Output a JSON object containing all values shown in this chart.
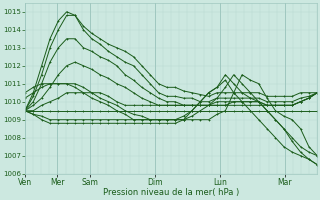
{
  "bg_color": "#cce8e0",
  "plot_bg_color": "#cce8e0",
  "grid_minor_color": "#b8d8d0",
  "grid_major_color": "#a0c8c0",
  "line_color": "#1a5c1a",
  "xlabel": "Pression niveau de la mer( hPa )",
  "ylim": [
    1006,
    1015.5
  ],
  "yticks": [
    1006,
    1007,
    1008,
    1009,
    1010,
    1011,
    1012,
    1013,
    1014,
    1015
  ],
  "day_labels": [
    "Ven",
    "Mer",
    "Sam",
    "Dim",
    "Lun",
    "Mar"
  ],
  "day_positions": [
    0,
    24,
    48,
    96,
    144,
    192
  ],
  "total_hours": 216,
  "series": [
    [
      1009.5,
      1010.5,
      1012.0,
      1013.5,
      1014.5,
      1015.0,
      1014.8,
      1014.2,
      1013.8,
      1013.5,
      1013.2,
      1013.0,
      1012.8,
      1012.5,
      1012.0,
      1011.5,
      1011.0,
      1010.8,
      1010.8,
      1010.6,
      1010.5,
      1010.4,
      1010.3,
      1010.5,
      1010.5,
      1010.5,
      1010.5,
      1010.5,
      1010.5,
      1010.3,
      1010.3,
      1010.3,
      1010.3,
      1010.5,
      1010.5,
      1010.5
    ],
    [
      1009.5,
      1010.3,
      1011.5,
      1013.0,
      1014.0,
      1014.8,
      1014.8,
      1014.0,
      1013.5,
      1013.2,
      1012.8,
      1012.5,
      1012.2,
      1012.0,
      1011.5,
      1011.0,
      1010.5,
      1010.3,
      1010.3,
      1010.2,
      1010.2,
      1010.0,
      1010.0,
      1010.2,
      1010.2,
      1010.2,
      1010.2,
      1010.2,
      1010.2,
      1010.0,
      1010.0,
      1010.0,
      1010.0,
      1010.2,
      1010.3,
      1010.5
    ],
    [
      1009.5,
      1010.0,
      1011.0,
      1012.2,
      1013.0,
      1013.5,
      1013.5,
      1013.0,
      1012.8,
      1012.5,
      1012.3,
      1012.0,
      1011.5,
      1011.2,
      1010.8,
      1010.5,
      1010.2,
      1010.0,
      1010.0,
      1009.8,
      1009.8,
      1009.8,
      1009.8,
      1010.0,
      1010.0,
      1010.0,
      1010.0,
      1010.0,
      1010.0,
      1009.8,
      1009.8,
      1009.8,
      1009.8,
      1010.0,
      1010.2,
      1010.5
    ],
    [
      1009.5,
      1009.8,
      1010.2,
      1010.8,
      1011.5,
      1012.0,
      1012.2,
      1012.0,
      1011.8,
      1011.5,
      1011.3,
      1011.0,
      1010.8,
      1010.5,
      1010.2,
      1010.0,
      1009.8,
      1009.8,
      1009.8,
      1009.8,
      1009.8,
      1009.8,
      1009.8,
      1009.8,
      1009.8,
      1010.0,
      1010.0,
      1010.0,
      1010.0,
      1009.8,
      1009.8,
      1009.8,
      1009.8,
      1010.0,
      1010.2,
      1010.5
    ],
    [
      1009.5,
      1009.5,
      1009.8,
      1010.0,
      1010.2,
      1010.5,
      1010.5,
      1010.5,
      1010.5,
      1010.5,
      1010.3,
      1010.0,
      1009.8,
      1009.8,
      1009.8,
      1009.8,
      1009.8,
      1009.8,
      1009.8,
      1009.8,
      1009.8,
      1009.8,
      1009.8,
      1009.8,
      1009.8,
      1009.8,
      1009.8,
      1009.8,
      1009.8,
      1009.8,
      1009.8,
      1009.8,
      1009.8,
      1010.0,
      1010.2,
      1010.5
    ],
    [
      1009.5,
      1009.5,
      1009.5,
      1009.5,
      1009.5,
      1009.5,
      1009.5,
      1009.5,
      1009.5,
      1009.5,
      1009.5,
      1009.5,
      1009.5,
      1009.5,
      1009.5,
      1009.5,
      1009.5,
      1009.5,
      1009.5,
      1009.5,
      1009.5,
      1009.5,
      1009.5,
      1009.5,
      1009.5,
      1009.5,
      1009.5,
      1009.5,
      1009.5,
      1009.5,
      1009.5,
      1009.5,
      1009.5,
      1009.5,
      1009.5,
      1009.5
    ],
    [
      1009.5,
      1009.3,
      1009.2,
      1009.0,
      1009.0,
      1009.0,
      1009.0,
      1009.0,
      1009.0,
      1009.0,
      1009.0,
      1009.0,
      1009.0,
      1009.0,
      1009.0,
      1009.0,
      1009.0,
      1009.0,
      1009.0,
      1009.0,
      1009.0,
      1009.0,
      1009.0,
      1009.3,
      1009.5,
      1010.5,
      1011.5,
      1011.2,
      1011.0,
      1010.2,
      1009.5,
      1009.2,
      1009.0,
      1008.5,
      1007.5,
      1007.0
    ],
    [
      1009.5,
      1009.3,
      1009.0,
      1008.8,
      1008.8,
      1008.8,
      1008.8,
      1008.8,
      1008.8,
      1008.8,
      1008.8,
      1008.8,
      1008.8,
      1008.8,
      1008.8,
      1008.8,
      1008.8,
      1008.8,
      1008.8,
      1009.0,
      1009.5,
      1010.0,
      1010.5,
      1010.8,
      1011.5,
      1011.0,
      1010.5,
      1010.2,
      1010.0,
      1009.5,
      1009.0,
      1008.5,
      1007.8,
      1007.2,
      1006.8,
      1006.5
    ],
    [
      1010.5,
      1010.8,
      1011.0,
      1011.0,
      1011.0,
      1011.0,
      1011.0,
      1010.8,
      1010.5,
      1010.2,
      1010.0,
      1009.8,
      1009.5,
      1009.3,
      1009.2,
      1009.0,
      1009.0,
      1009.0,
      1009.0,
      1009.0,
      1009.2,
      1009.5,
      1009.8,
      1010.2,
      1010.8,
      1011.5,
      1011.0,
      1010.5,
      1010.0,
      1009.5,
      1009.0,
      1008.5,
      1008.0,
      1007.5,
      1007.2,
      1007.0
    ],
    [
      1010.2,
      1010.5,
      1010.8,
      1011.0,
      1011.0,
      1011.0,
      1010.8,
      1010.5,
      1010.2,
      1010.0,
      1009.8,
      1009.5,
      1009.3,
      1009.0,
      1009.0,
      1009.0,
      1009.0,
      1009.0,
      1009.0,
      1009.2,
      1009.5,
      1010.0,
      1010.5,
      1010.8,
      1011.2,
      1010.5,
      1010.0,
      1009.5,
      1009.0,
      1008.5,
      1008.0,
      1007.5,
      1007.2,
      1007.0,
      1006.8,
      1006.5
    ]
  ]
}
